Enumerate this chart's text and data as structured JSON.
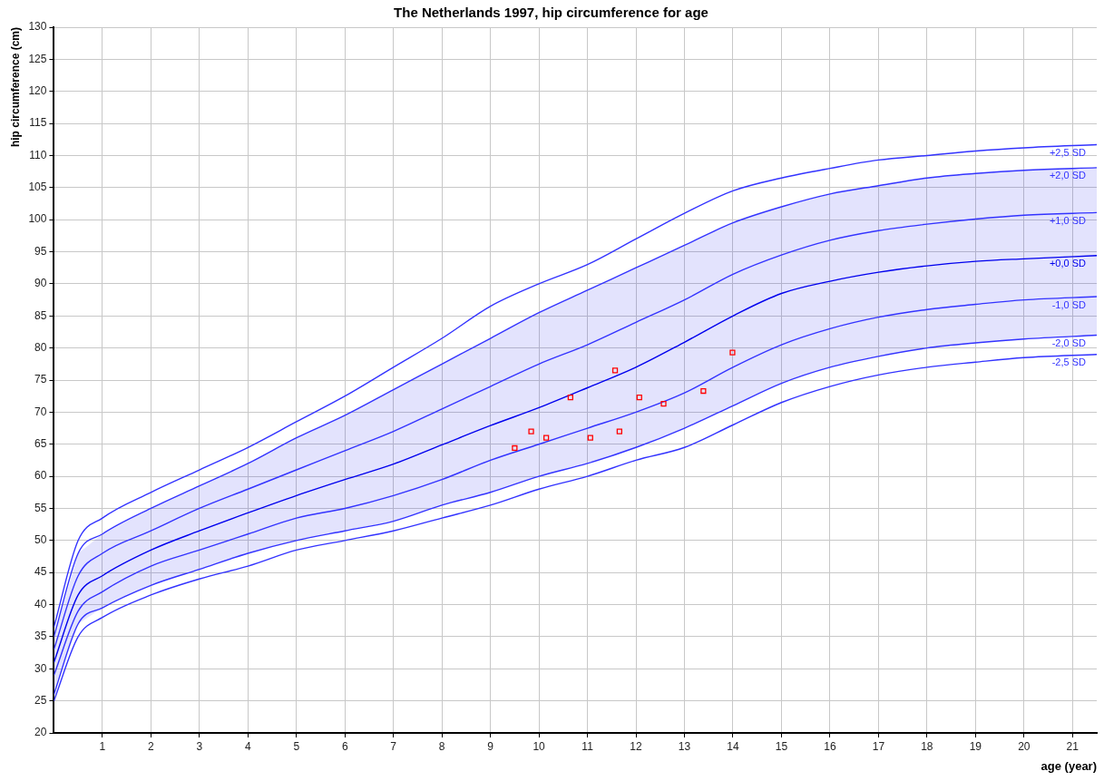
{
  "chart_data": {
    "type": "line",
    "title": "The Netherlands 1997, hip circumference for age",
    "xlabel": "age (year)",
    "ylabel": "hip circumference (cm)",
    "x": [
      0,
      0.5,
      1,
      2,
      3,
      4,
      5,
      6,
      7,
      8,
      9,
      10,
      11,
      12,
      13,
      14,
      15,
      16,
      17,
      18,
      19,
      20,
      21.5
    ],
    "series": [
      {
        "name": "+2,5 SD",
        "color": "#3333ff",
        "values": [
          36.5,
          50,
          53.5,
          57.5,
          61,
          64.5,
          68.5,
          72.5,
          77,
          81.5,
          86.5,
          90,
          93,
          97,
          101,
          104.5,
          106.5,
          108,
          109.3,
          110,
          110.7,
          111.2,
          111.7
        ]
      },
      {
        "name": "+2,0 SD",
        "color": "#3333ff",
        "values": [
          35,
          48,
          51,
          55,
          58.5,
          62,
          66,
          69.5,
          73.5,
          77.5,
          81.5,
          85.5,
          89,
          92.5,
          96,
          99.5,
          102,
          104,
          105.3,
          106.5,
          107.2,
          107.7,
          108.1
        ]
      },
      {
        "name": "+1,0 SD",
        "color": "#3333ff",
        "values": [
          33,
          44.5,
          48,
          51.5,
          55,
          58,
          61,
          64,
          67,
          70.5,
          74,
          77.5,
          80.5,
          84,
          87.5,
          91.5,
          94.5,
          96.8,
          98.3,
          99.3,
          100.1,
          100.7,
          101.1
        ]
      },
      {
        "name": "+0,0 SD",
        "color": "#0000ee",
        "values": [
          31,
          41.5,
          44.5,
          48.5,
          51.5,
          54.3,
          57,
          59.5,
          61.9,
          64.9,
          67.9,
          70.7,
          73.8,
          77,
          80.9,
          85,
          88.5,
          90.4,
          91.8,
          92.8,
          93.5,
          93.9,
          94.4
        ],
        "lower": [
          26,
          37,
          39.5,
          43,
          45.5,
          48,
          50,
          51.5,
          53,
          55.5,
          57.5,
          60,
          62,
          64.5,
          67.5,
          71,
          74.5,
          77,
          78.7,
          80,
          80.8,
          81.4,
          82
        ],
        "upper": [
          35,
          48,
          51,
          55,
          58.5,
          62,
          66,
          69.5,
          73.5,
          77.5,
          81.5,
          85.5,
          89,
          92.5,
          96,
          99.5,
          102,
          104,
          105.3,
          106.5,
          107.2,
          107.7,
          108.1
        ]
      },
      {
        "name": "-1,0 SD",
        "color": "#3333ff",
        "values": [
          29,
          39,
          42,
          46,
          48.5,
          51,
          53.5,
          55,
          57,
          59.5,
          62.5,
          65,
          67.5,
          70,
          73,
          77,
          80.5,
          83,
          84.8,
          86,
          86.8,
          87.5,
          88
        ]
      },
      {
        "name": "-2,0 SD",
        "color": "#3333ff",
        "values": [
          26,
          37,
          39.5,
          43,
          45.5,
          48,
          50,
          51.5,
          53,
          55.5,
          57.5,
          60,
          62,
          64.5,
          67.5,
          71,
          74.5,
          77,
          78.7,
          80,
          80.8,
          81.4,
          82
        ]
      },
      {
        "name": "-2,5 SD",
        "color": "#3333ff",
        "values": [
          25,
          35,
          38,
          41.5,
          44,
          46,
          48.5,
          50,
          51.5,
          53.5,
          55.5,
          58,
          60,
          62.5,
          64.5,
          68,
          71.5,
          74,
          75.8,
          77,
          77.8,
          78.5,
          79
        ]
      },
      {
        "type": "scatter",
        "marker": "square",
        "color": "#ff0000",
        "x": [
          9.5,
          9.84,
          10.15,
          10.65,
          11.06,
          11.57,
          11.66,
          12.07,
          12.57,
          13.39,
          13.99
        ],
        "values": [
          64.4,
          67,
          66,
          72.3,
          66,
          76.5,
          67,
          72.3,
          71.3,
          73.3,
          79.3
        ]
      }
    ],
    "marker": "none",
    "line_style": "solid",
    "xlim": [
      0,
      21.5
    ],
    "xticks": [
      1,
      2,
      3,
      4,
      5,
      6,
      7,
      8,
      9,
      10,
      11,
      12,
      13,
      14,
      15,
      16,
      17,
      18,
      19,
      20,
      21
    ],
    "ylim": [
      20,
      130
    ],
    "yticks": [
      20,
      25,
      30,
      35,
      40,
      45,
      50,
      55,
      60,
      65,
      70,
      75,
      80,
      85,
      90,
      95,
      100,
      105,
      110,
      115,
      120,
      125,
      130
    ],
    "grid": true,
    "legend": false
  }
}
